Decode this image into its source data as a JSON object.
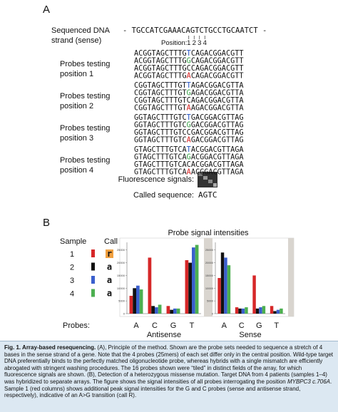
{
  "panel_a": {
    "label": "A",
    "sequence_label": [
      "Sequenced DNA",
      "strand (sense)"
    ],
    "sequence": "- TGCCATCGAAACAGTCTGCCTGCAATCT -",
    "position_label": "Position:",
    "positions": [
      "1",
      "2",
      "3",
      "4"
    ],
    "groups": [
      {
        "label": [
          "Probes testing",
          "position 1"
        ],
        "probes": [
          "ACGGTAGCTTTGTCAGACGGACGTT",
          "ACGGTAGCTTTGGCAGACGGACGTT",
          "ACGGTAGCTTTGCCAGACGGACGTT",
          "ACGGTAGCTTTGACAGACGGACGTT"
        ]
      },
      {
        "label": [
          "Probes testing",
          "position 2"
        ],
        "probes": [
          "CGGTAGCTTTGTTAGACGGACGTTA",
          "CGGTAGCTTTGTGAGACGGACGTTA",
          "CGGTAGCTTTGTCAGACGGACGTTA",
          "CGGTAGCTTTGTAAGACGGACGTTA"
        ]
      },
      {
        "label": [
          "Probes testing",
          "position 3"
        ],
        "probes": [
          "GGTAGCTTTGTCTGACGGACGTTAG",
          "GGTAGCTTTGTCGGACGGACGTTAG",
          "GGTAGCTTTGTCCGACGGACGTTAG",
          "GGTAGCTTTGTCAGACGGACGTTAG"
        ]
      },
      {
        "label": [
          "Probes testing",
          "position 4"
        ],
        "probes": [
          "GTAGCTTTGTCATACGGACGTTAGA",
          "GTAGCTTTGTCAGACGGACGTTAGA",
          "GTAGCTTTGTCACACGGACGTTAGA",
          "GTAGCTTTGTCAAACGGACGTTAGA"
        ]
      }
    ],
    "fluorescence_label": "Fluorescence signals:",
    "called_label": "Called sequence:",
    "called_sequence": "AGTC"
  },
  "panel_b": {
    "label": "B",
    "sample_header": "Sample",
    "call_header": "Call",
    "samples": [
      {
        "id": "1",
        "call": "r"
      },
      {
        "id": "2",
        "call": "a"
      },
      {
        "id": "3",
        "call": "a"
      },
      {
        "id": "4",
        "call": "a"
      }
    ],
    "chart_title": "Probe signal intensities",
    "probes_label": "Probes:",
    "chart_data": [
      {
        "type": "bar",
        "xlabel": "Antisense",
        "categories": [
          "A",
          "C",
          "G",
          "T"
        ],
        "ylim": [
          0,
          28000
        ],
        "yticks": [
          0,
          5000,
          10000,
          15000,
          20000,
          25000
        ],
        "series": [
          {
            "color": "#d62728",
            "values": [
              7000,
              22000,
              3000,
              21000
            ]
          },
          {
            "color": "#111111",
            "values": [
              10000,
              3000,
              1500,
              20000
            ]
          },
          {
            "color": "#3a5fcd",
            "values": [
              11000,
              2500,
              2000,
              26000
            ]
          },
          {
            "color": "#4caf50",
            "values": [
              9500,
              3500,
              2000,
              27000
            ]
          }
        ]
      },
      {
        "type": "bar",
        "xlabel": "Sense",
        "categories": [
          "A",
          "C",
          "G",
          "T"
        ],
        "ylim": [
          0,
          28000
        ],
        "yticks": [
          0,
          5000,
          10000,
          15000,
          20000,
          25000
        ],
        "series": [
          {
            "color": "#d62728",
            "values": [
              14000,
              2500,
              15000,
              3000
            ]
          },
          {
            "color": "#111111",
            "values": [
              24000,
              2000,
              2000,
              1000
            ]
          },
          {
            "color": "#3a5fcd",
            "values": [
              22000,
              2000,
              2500,
              1500
            ]
          },
          {
            "color": "#4caf50",
            "values": [
              19000,
              2500,
              3000,
              2000
            ]
          }
        ]
      }
    ]
  },
  "caption": {
    "title": "Fig. 1. Array-based resequencing.",
    "body": [
      "(A), Principle of the method. Shown are the probe sets needed to sequence a stretch of 4 bases in the sense strand of a gene. Note that the 4 probes (25mers) of each set differ only in the central position. Wild-type target DNA preferentially binds to the perfectly matched oligonucleotide probe, whereas hybrids with a single mismatch are efficiently abrogated with stringent washing procedures. The 16 probes shown were “tiled” in distinct fields of the array, for which fluorescence signals are shown. (B), Detection of a heterozygous missense mutation. Target DNA from 4 patients (samples 1–4) was hybridized to separate arrays. The figure shows the signal intensities of all probes interrogating the position ",
      "MYBPC3 c.706A",
      ". Sample 1 (red columns) shows additional peak signal intensities for the G and C probes (sense and antisense strand, respectively), indicative of an A>G transition (call R)."
    ]
  }
}
